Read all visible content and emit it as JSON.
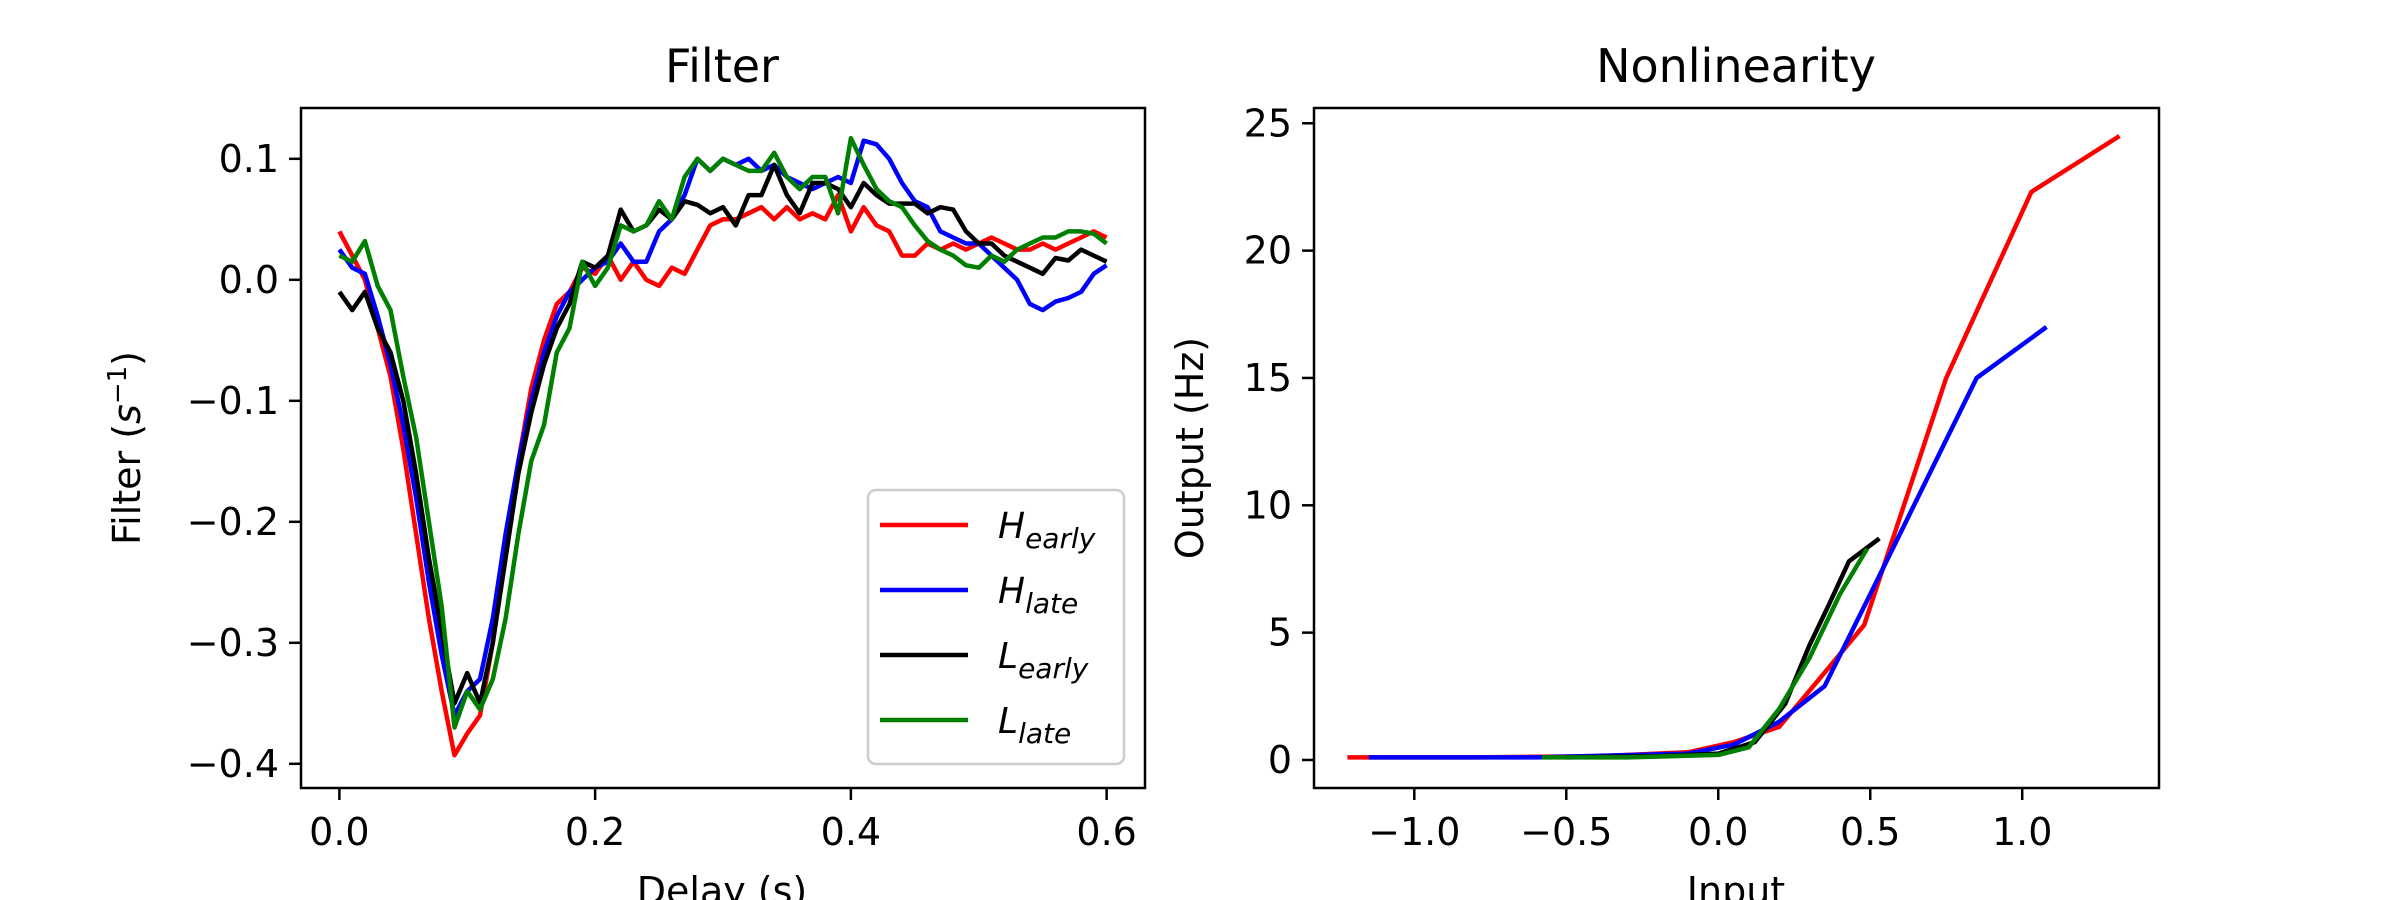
{
  "chart_data": [
    {
      "type": "line",
      "title": "Filter",
      "xlabel": "Delay (s)",
      "ylabel": "Filter (s^-1)",
      "xlim": [
        -0.03,
        0.63
      ],
      "ylim": [
        -0.42,
        0.142
      ],
      "xticks": [
        0.0,
        0.2,
        0.4,
        0.6
      ],
      "xtick_labels": [
        "0.0",
        "0.2",
        "0.4",
        "0.6"
      ],
      "yticks": [
        0.1,
        0.0,
        -0.1,
        -0.2,
        -0.3,
        -0.4
      ],
      "ytick_labels": [
        "0.1",
        "0.0",
        "−0.1",
        "−0.2",
        "−0.3",
        "−0.4"
      ],
      "legend_position": "lower-right",
      "x": [
        0.0,
        0.01,
        0.02,
        0.03,
        0.04,
        0.05,
        0.06,
        0.07,
        0.08,
        0.09,
        0.1,
        0.11,
        0.12,
        0.13,
        0.14,
        0.15,
        0.16,
        0.17,
        0.18,
        0.19,
        0.2,
        0.21,
        0.22,
        0.23,
        0.24,
        0.25,
        0.26,
        0.27,
        0.28,
        0.29,
        0.3,
        0.31,
        0.32,
        0.33,
        0.34,
        0.35,
        0.36,
        0.37,
        0.38,
        0.39,
        0.4,
        0.41,
        0.42,
        0.43,
        0.44,
        0.45,
        0.46,
        0.47,
        0.48,
        0.49,
        0.5,
        0.51,
        0.52,
        0.53,
        0.54,
        0.55,
        0.56,
        0.57,
        0.58,
        0.59,
        0.6
      ],
      "series": [
        {
          "name": "H",
          "subscript": "early",
          "color": "#ff0000",
          "values": [
            0.04,
            0.02,
            0.0,
            -0.04,
            -0.08,
            -0.14,
            -0.21,
            -0.28,
            -0.34,
            -0.393,
            -0.375,
            -0.36,
            -0.3,
            -0.22,
            -0.15,
            -0.09,
            -0.05,
            -0.02,
            -0.01,
            0.01,
            0.005,
            0.02,
            0.0,
            0.015,
            0.0,
            -0.005,
            0.01,
            0.005,
            0.025,
            0.045,
            0.05,
            0.05,
            0.055,
            0.06,
            0.05,
            0.06,
            0.05,
            0.055,
            0.05,
            0.07,
            0.04,
            0.06,
            0.045,
            0.04,
            0.02,
            0.02,
            0.03,
            0.025,
            0.03,
            0.025,
            0.03,
            0.035,
            0.03,
            0.025,
            0.025,
            0.03,
            0.025,
            0.03,
            0.035,
            0.04,
            0.035
          ]
        },
        {
          "name": "H",
          "subscript": "late",
          "color": "#0000ff",
          "values": [
            0.025,
            0.01,
            0.005,
            -0.03,
            -0.07,
            -0.12,
            -0.18,
            -0.25,
            -0.31,
            -0.36,
            -0.34,
            -0.33,
            -0.28,
            -0.21,
            -0.15,
            -0.1,
            -0.06,
            -0.03,
            -0.01,
            0.0,
            0.01,
            0.015,
            0.03,
            0.015,
            0.015,
            0.04,
            0.05,
            0.07,
            0.1,
            0.09,
            0.1,
            0.095,
            0.1,
            0.09,
            0.095,
            0.085,
            0.08,
            0.075,
            0.08,
            0.085,
            0.08,
            0.115,
            0.112,
            0.1,
            0.08,
            0.065,
            0.06,
            0.04,
            0.035,
            0.03,
            0.03,
            0.02,
            0.01,
            0.0,
            -0.02,
            -0.025,
            -0.018,
            -0.015,
            -0.01,
            0.005,
            0.012
          ]
        },
        {
          "name": "L",
          "subscript": "early",
          "color": "#000000",
          "values": [
            -0.01,
            -0.025,
            -0.01,
            -0.04,
            -0.06,
            -0.1,
            -0.16,
            -0.23,
            -0.29,
            -0.35,
            -0.325,
            -0.35,
            -0.3,
            -0.23,
            -0.16,
            -0.11,
            -0.07,
            -0.04,
            -0.02,
            0.015,
            0.01,
            0.02,
            0.058,
            0.04,
            0.045,
            0.058,
            0.05,
            0.065,
            0.062,
            0.055,
            0.06,
            0.045,
            0.07,
            0.07,
            0.095,
            0.07,
            0.055,
            0.08,
            0.08,
            0.075,
            0.06,
            0.08,
            0.07,
            0.063,
            0.063,
            0.063,
            0.055,
            0.06,
            0.058,
            0.04,
            0.03,
            0.03,
            0.02,
            0.015,
            0.01,
            0.005,
            0.018,
            0.016,
            0.025,
            0.02,
            0.015
          ]
        },
        {
          "name": "L",
          "subscript": "late",
          "color": "#008000",
          "values": [
            0.02,
            0.015,
            0.032,
            -0.005,
            -0.025,
            -0.08,
            -0.13,
            -0.2,
            -0.27,
            -0.37,
            -0.34,
            -0.355,
            -0.33,
            -0.28,
            -0.21,
            -0.15,
            -0.12,
            -0.06,
            -0.04,
            0.015,
            -0.005,
            0.01,
            0.045,
            0.04,
            0.045,
            0.065,
            0.05,
            0.085,
            0.1,
            0.09,
            0.1,
            0.095,
            0.09,
            0.09,
            0.105,
            0.085,
            0.075,
            0.085,
            0.085,
            0.055,
            0.117,
            0.095,
            0.075,
            0.065,
            0.06,
            0.045,
            0.032,
            0.025,
            0.02,
            0.012,
            0.01,
            0.02,
            0.015,
            0.025,
            0.03,
            0.035,
            0.035,
            0.04,
            0.04,
            0.038,
            0.03
          ]
        }
      ]
    },
    {
      "type": "line",
      "title": "Nonlinearity",
      "xlabel": "Input",
      "ylabel": "Output (Hz)",
      "xlim": [
        -1.33,
        1.45
      ],
      "ylim": [
        -1.1,
        25.6
      ],
      "xticks": [
        -1.0,
        -0.5,
        0.0,
        0.5,
        1.0
      ],
      "xtick_labels": [
        "−1.0",
        "−0.5",
        "0.0",
        "0.5",
        "1.0"
      ],
      "yticks": [
        0,
        5,
        10,
        15,
        20,
        25
      ],
      "ytick_labels": [
        "0",
        "5",
        "10",
        "15",
        "20",
        "25"
      ],
      "series": [
        {
          "name": "H_early",
          "color": "#ff0000",
          "x": [
            -1.22,
            -0.8,
            -0.4,
            -0.1,
            0.05,
            0.2,
            0.32,
            0.48,
            0.75,
            1.03,
            1.32
          ],
          "y": [
            0.1,
            0.1,
            0.15,
            0.3,
            0.7,
            1.3,
            3.0,
            5.3,
            15.0,
            22.3,
            24.5
          ]
        },
        {
          "name": "H_late",
          "color": "#0000ff",
          "x": [
            -1.15,
            -0.6,
            -0.1,
            0.05,
            0.2,
            0.35,
            0.5,
            0.85,
            1.08
          ],
          "y": [
            0.1,
            0.1,
            0.25,
            0.6,
            1.5,
            2.9,
            6.5,
            15.0,
            17.0
          ]
        },
        {
          "name": "L_early",
          "color": "#000000",
          "x": [
            -0.5,
            -0.2,
            0.0,
            0.12,
            0.22,
            0.3,
            0.36,
            0.43,
            0.53
          ],
          "y": [
            0.1,
            0.15,
            0.25,
            0.7,
            2.2,
            4.5,
            6.0,
            7.8,
            8.7
          ]
        },
        {
          "name": "L_late",
          "color": "#008000",
          "x": [
            -0.58,
            -0.3,
            0.0,
            0.1,
            0.2,
            0.3,
            0.4,
            0.49
          ],
          "y": [
            0.1,
            0.1,
            0.2,
            0.5,
            2.0,
            4.0,
            6.5,
            8.3
          ]
        }
      ]
    }
  ]
}
